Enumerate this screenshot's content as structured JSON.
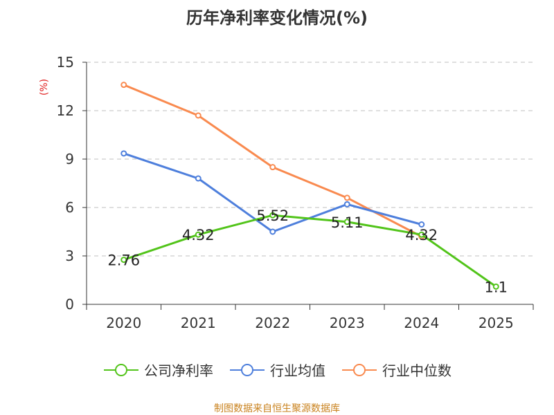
{
  "chart_data": {
    "type": "line",
    "title": "历年净利率变化情况(%)",
    "unit_label": "(%)",
    "categories": [
      "2020",
      "2021",
      "2022",
      "2023",
      "2024",
      "2025"
    ],
    "ylim": [
      0,
      15
    ],
    "yticks": [
      0,
      3,
      6,
      9,
      12,
      15
    ],
    "grid": true,
    "legend_position": "bottom",
    "series": [
      {
        "name": "公司净利率",
        "color": "#52c41a",
        "values": [
          2.76,
          4.32,
          5.52,
          5.11,
          4.32,
          1.1
        ],
        "labels": [
          "2.76",
          "4.32",
          "5.52",
          "5.11",
          "4.32",
          "1.1"
        ]
      },
      {
        "name": "行业均值",
        "color": "#4e7fdc",
        "values": [
          9.35,
          7.8,
          4.5,
          6.2,
          4.95,
          null
        ]
      },
      {
        "name": "行业中位数",
        "color": "#f98a4f",
        "values": [
          13.6,
          11.7,
          8.5,
          6.6,
          4.2,
          null
        ]
      }
    ]
  },
  "source_text": "制图数据来自恒生聚源数据库"
}
